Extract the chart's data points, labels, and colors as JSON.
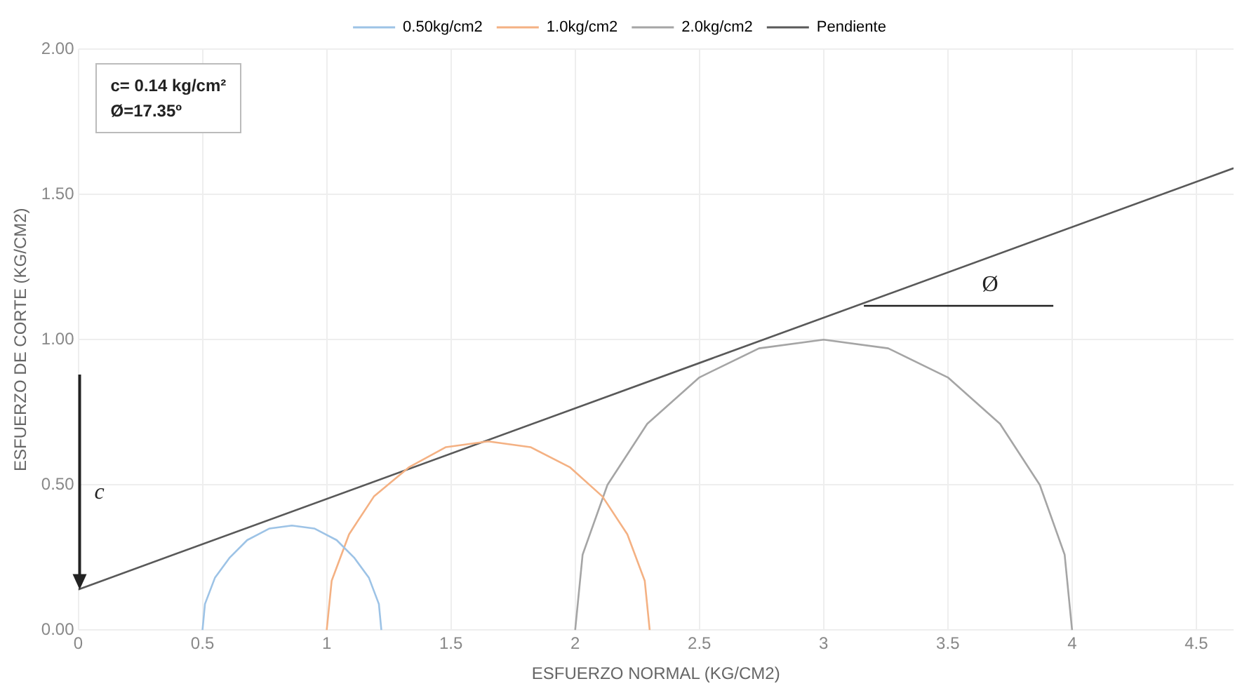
{
  "chart_data": {
    "type": "line",
    "xlabel": "ESFUERZO NORMAL (KG/CM2)",
    "ylabel": "ESFUERZO DE CORTE (KG/CM2)",
    "xlim": [
      0,
      4.65
    ],
    "xticks": [
      0,
      0.5,
      1,
      1.5,
      2,
      2.5,
      3,
      3.5,
      4,
      4.5
    ],
    "ylim": [
      0,
      2
    ],
    "yticks": [
      {
        "value": 0,
        "label": "0.00"
      },
      {
        "value": 0.5,
        "label": "0.50"
      },
      {
        "value": 1,
        "label": "1.00"
      },
      {
        "value": 1.5,
        "label": "1.50"
      },
      {
        "value": 2,
        "label": "2.00"
      }
    ],
    "grid": true,
    "legend": "top",
    "marker": "none",
    "line_style": "solid",
    "series": [
      {
        "name": "0.50kg/cm2",
        "color": "#9dc3e6",
        "x": [
          0.5,
          0.51,
          0.55,
          0.61,
          0.68,
          0.77,
          0.86,
          0.95,
          1.04,
          1.11,
          1.17,
          1.21,
          1.22
        ],
        "values": [
          0,
          0.09,
          0.18,
          0.25,
          0.31,
          0.35,
          0.36,
          0.35,
          0.31,
          0.25,
          0.18,
          0.09,
          0
        ]
      },
      {
        "name": "1.0kg/cm2",
        "color": "#f4b183",
        "x": [
          1.0,
          1.02,
          1.09,
          1.19,
          1.33,
          1.48,
          1.65,
          1.82,
          1.98,
          2.11,
          2.21,
          2.28,
          2.3
        ],
        "values": [
          0,
          0.17,
          0.33,
          0.46,
          0.56,
          0.63,
          0.65,
          0.63,
          0.56,
          0.46,
          0.33,
          0.17,
          0
        ]
      },
      {
        "name": "2.0kg/cm2",
        "color": "#a5a5a5",
        "x": [
          2,
          2.03,
          2.13,
          2.29,
          2.5,
          2.74,
          3,
          3.26,
          3.5,
          3.71,
          3.87,
          3.97,
          4
        ],
        "values": [
          0,
          0.26,
          0.5,
          0.71,
          0.87,
          0.97,
          1,
          0.97,
          0.87,
          0.71,
          0.5,
          0.26,
          0
        ]
      },
      {
        "name": "Pendiente",
        "color": "#595959",
        "x": [
          0,
          4.65
        ],
        "values": [
          0.14,
          1.59
        ]
      }
    ],
    "annotations": [
      "c= 0.14 kg/cm²",
      "Ø=17.35º",
      "c",
      "Ø"
    ]
  }
}
